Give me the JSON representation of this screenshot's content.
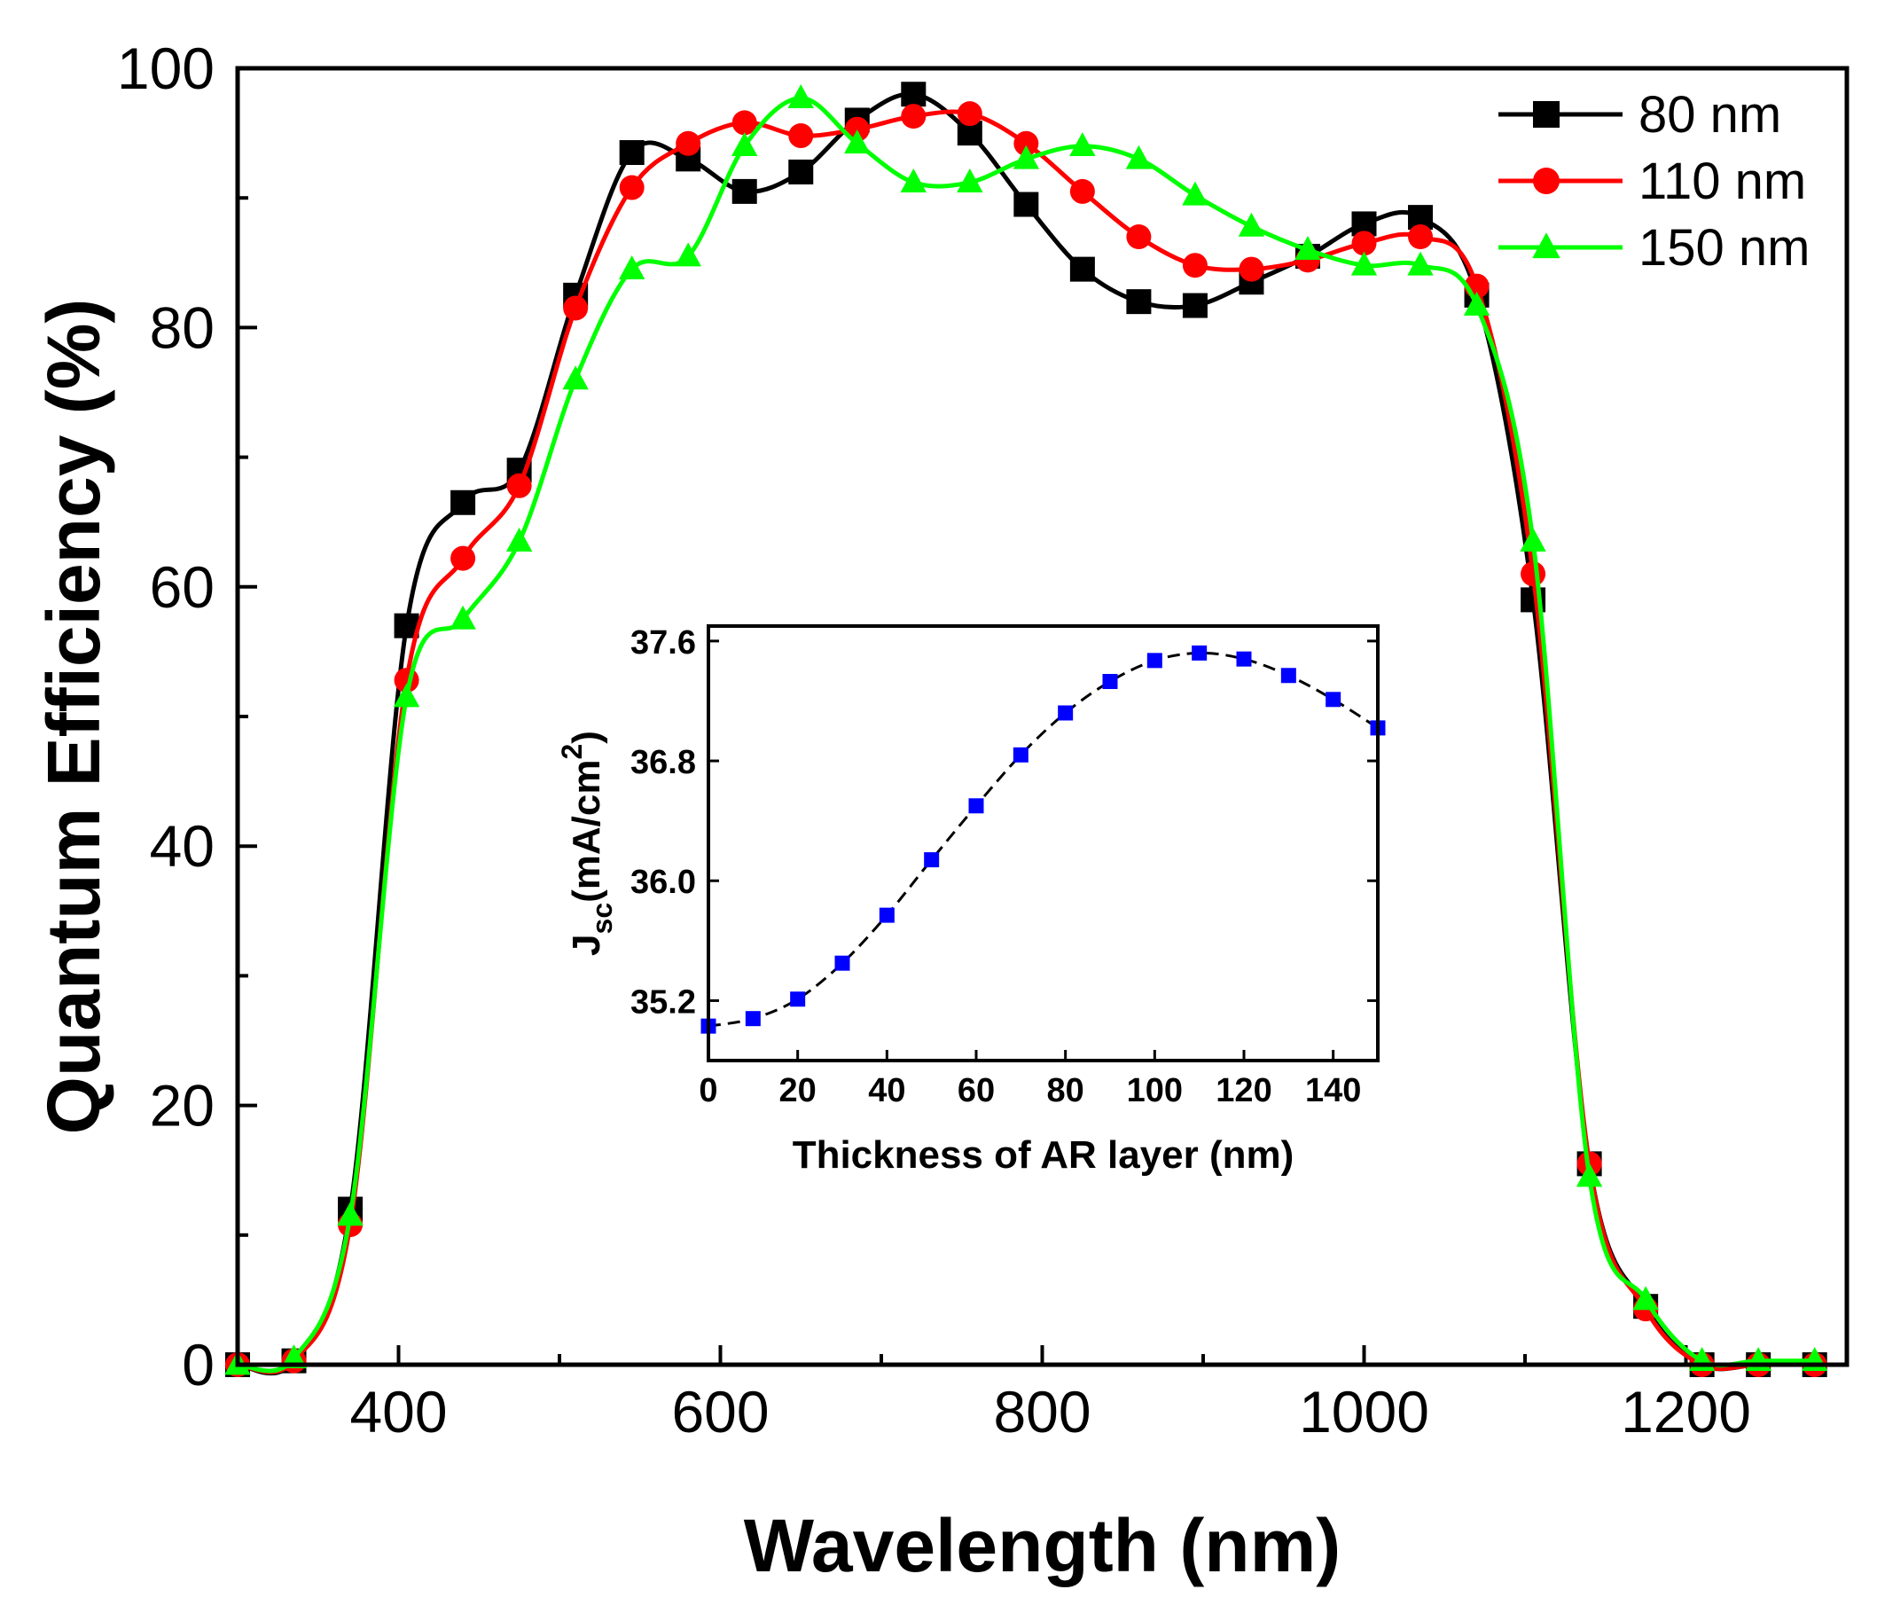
{
  "chart_data": [
    {
      "type": "line",
      "role": "main",
      "xlabel": "Wavelength (nm)",
      "ylabel": "Quantum Efficiency (%)",
      "xlim": [
        300,
        1300
      ],
      "ylim": [
        0,
        100
      ],
      "xticks": [
        400,
        600,
        800,
        1000,
        1200
      ],
      "xtick_labels": [
        "400",
        "600",
        "800",
        "1000",
        "1200"
      ],
      "yticks": [
        0,
        20,
        40,
        60,
        80,
        100
      ],
      "ytick_labels": [
        "0",
        "20",
        "40",
        "60",
        "80",
        "100"
      ],
      "legend_position": "top-right",
      "series": [
        {
          "name": "80 nm",
          "color": "#000000",
          "marker": "square",
          "x": [
            300,
            335,
            370,
            405,
            440,
            475,
            510,
            545,
            580,
            615,
            650,
            685,
            720,
            755,
            790,
            825,
            860,
            895,
            930,
            965,
            1000,
            1035,
            1070,
            1105,
            1140,
            1175,
            1210,
            1245,
            1280
          ],
          "y": [
            0,
            0.3,
            12,
            57,
            66.5,
            69,
            82.5,
            93.5,
            93,
            90.5,
            92,
            96,
            98,
            95,
            89.5,
            84.5,
            82,
            81.7,
            83.5,
            85.5,
            88,
            88.5,
            82.5,
            59,
            15.5,
            4.5,
            0,
            0,
            0
          ]
        },
        {
          "name": "110 nm",
          "color": "#ff0000",
          "marker": "circle",
          "x": [
            300,
            335,
            370,
            405,
            440,
            475,
            510,
            545,
            580,
            615,
            650,
            685,
            720,
            755,
            790,
            825,
            860,
            895,
            930,
            965,
            1000,
            1035,
            1070,
            1105,
            1140,
            1175,
            1210,
            1245,
            1280
          ],
          "y": [
            0,
            0.3,
            10.8,
            52.8,
            62.2,
            67.8,
            81.5,
            90.8,
            94.2,
            95.8,
            94.8,
            95.3,
            96.3,
            96.5,
            94.2,
            90.5,
            87,
            84.8,
            84.5,
            85.2,
            86.5,
            87,
            83.2,
            61,
            15.5,
            4.3,
            0,
            0,
            0
          ]
        },
        {
          "name": "150 nm",
          "color": "#00ff00",
          "marker": "triangle",
          "x": [
            300,
            335,
            370,
            405,
            440,
            475,
            510,
            545,
            580,
            615,
            650,
            685,
            720,
            755,
            790,
            825,
            860,
            895,
            930,
            965,
            1000,
            1035,
            1070,
            1105,
            1140,
            1175,
            1210,
            1245,
            1280
          ],
          "y": [
            0,
            0.5,
            11.5,
            51.5,
            57.5,
            63.5,
            76,
            84.5,
            85.5,
            94,
            97.7,
            94.2,
            91.2,
            91.2,
            93,
            94,
            93,
            90.2,
            87.8,
            86,
            84.8,
            84.8,
            81.7,
            63.5,
            14.5,
            5,
            0.3,
            0.3,
            0.3
          ]
        }
      ]
    },
    {
      "type": "line",
      "role": "inset",
      "xlabel": "Thickness of AR layer (nm)",
      "ylabel_main": "J",
      "ylabel_sub": "sc",
      "ylabel_unit": "(mA/cm",
      "ylabel_sup": "2",
      "ylabel_close": ")",
      "xlim": [
        0,
        150
      ],
      "ylim": [
        34.8,
        37.7
      ],
      "xticks": [
        0,
        20,
        40,
        60,
        80,
        100,
        120,
        140
      ],
      "xtick_labels": [
        "0",
        "20",
        "40",
        "60",
        "80",
        "100",
        "120",
        "140"
      ],
      "yticks": [
        35.2,
        36.0,
        36.8,
        37.6
      ],
      "ytick_labels": [
        "35.2",
        "36.0",
        "36.8",
        "37.6"
      ],
      "series": [
        {
          "name": "Jsc",
          "color": "#0000ff",
          "line_color": "#000000",
          "line_style": "dashed",
          "marker": "square",
          "x": [
            0,
            10,
            20,
            30,
            40,
            50,
            60,
            70,
            80,
            90,
            100,
            110,
            120,
            130,
            140,
            150
          ],
          "y": [
            35.03,
            35.08,
            35.21,
            35.45,
            35.77,
            36.14,
            36.5,
            36.84,
            37.12,
            37.33,
            37.47,
            37.52,
            37.48,
            37.37,
            37.21,
            37.02
          ]
        }
      ]
    }
  ]
}
